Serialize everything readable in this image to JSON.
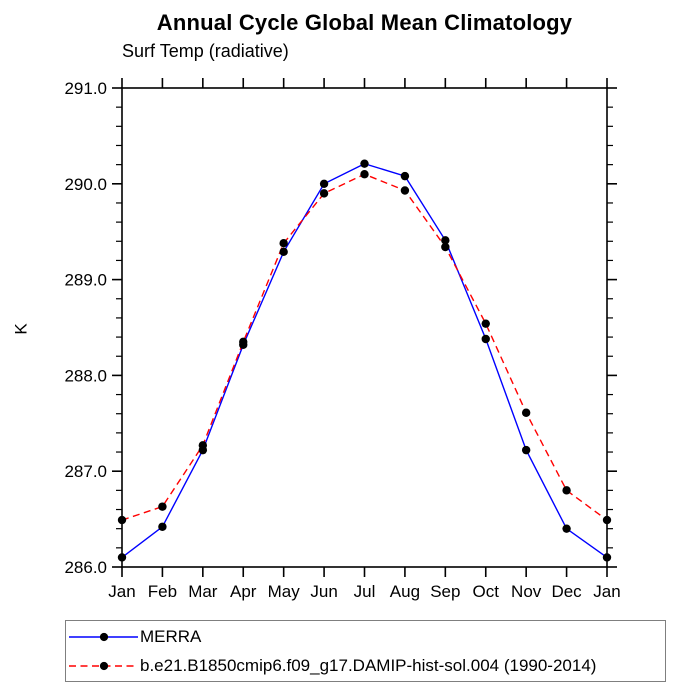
{
  "chart": {
    "title": "Annual Cycle Global Mean Climatology",
    "subtitle": "Surf Temp (radiative)",
    "y_axis_label": "K"
  },
  "chart_data": {
    "type": "line",
    "title": "Annual Cycle Global Mean Climatology",
    "subtitle": "Surf Temp (radiative)",
    "xlabel": "",
    "ylabel": "K",
    "categories": [
      "Jan",
      "Feb",
      "Mar",
      "Apr",
      "May",
      "Jun",
      "Jul",
      "Aug",
      "Sep",
      "Oct",
      "Nov",
      "Dec",
      "Jan"
    ],
    "ylim": [
      286.0,
      291.0
    ],
    "ytick_major": 1.0,
    "ytick_minor": 0.2,
    "ytick_labels": [
      "286.0",
      "287.0",
      "288.0",
      "289.0",
      "290.0",
      "291.0"
    ],
    "grid": false,
    "legend_position": "bottom-left",
    "marker": "filled-circle",
    "marker_color": "#000000",
    "series": [
      {
        "name": "MERRA",
        "color": "#0000ff",
        "dash": "solid",
        "values": [
          286.1,
          286.42,
          287.22,
          288.32,
          289.29,
          290.0,
          290.21,
          290.08,
          289.41,
          288.38,
          287.22,
          286.4,
          286.1
        ]
      },
      {
        "name": "b.e21.B1850cmip6.f09_g17.DAMIP-hist-sol.004 (1990-2014)",
        "color": "#ff0000",
        "dash": "dashed",
        "values": [
          286.49,
          286.63,
          287.27,
          288.35,
          289.38,
          289.9,
          290.1,
          289.93,
          289.34,
          288.54,
          287.61,
          286.8,
          286.49
        ]
      }
    ]
  }
}
